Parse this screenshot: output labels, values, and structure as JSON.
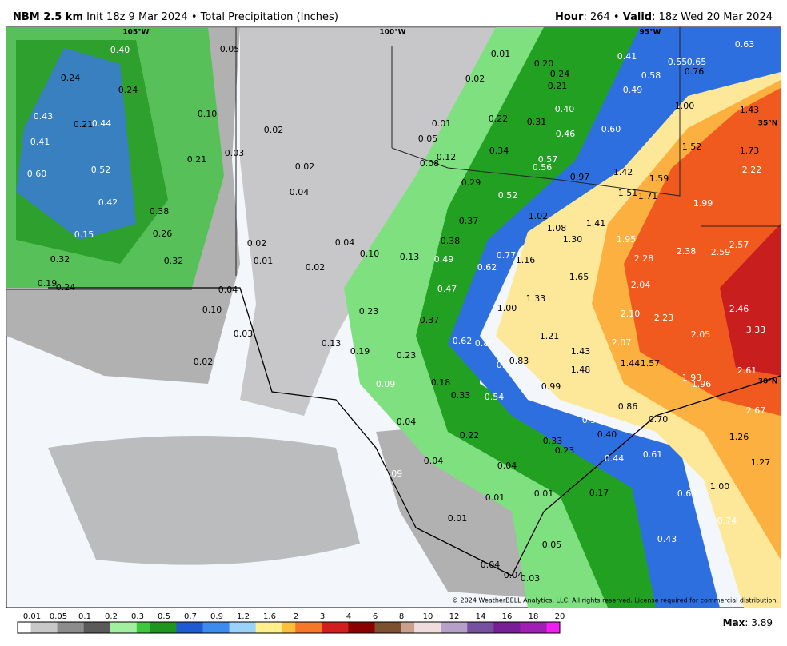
{
  "header": {
    "model": "NBM 2.5 km",
    "init": "Init 18z 9 Mar 2024 • Total Precipitation (Inches)",
    "hour_label": "Hour",
    "hour_value": ": 264 •",
    "valid_label": "Valid",
    "valid_value": ": 18z Wed 20 Mar 2024"
  },
  "map": {
    "graticule": [
      "105°W",
      "100°W",
      "95°W",
      "35°N",
      "30°N"
    ],
    "labels": [
      "0.40",
      "0.05",
      "0.24",
      "0.24",
      "0.10",
      "0.43",
      "0.21",
      "0.44",
      "0.41",
      "0.21",
      "0.03",
      "0.52",
      "0.60",
      "0.42",
      "0.38",
      "0.15",
      "0.26",
      "0.32",
      "0.32",
      "0.19",
      "0.24",
      "0.02",
      "0.02",
      "0.04",
      "0.02",
      "0.01",
      "0.04",
      "0.10",
      "0.02",
      "0.04",
      "0.10",
      "0.03",
      "0.02",
      "0.01",
      "0.02",
      "0.20",
      "0.24",
      "0.21",
      "0.41",
      "0.58",
      "0.49",
      "0.55",
      "0.65",
      "0.63",
      "0.76",
      "0.40",
      "0.22",
      "0.31",
      "0.46",
      "0.60",
      "1.00",
      "1.43",
      "0.01",
      "0.05",
      "0.34",
      "0.12",
      "0.08",
      "0.57",
      "0.56",
      "0.97",
      "1.42",
      "1.59",
      "1.52",
      "1.73",
      "2.22",
      "0.29",
      "0.52",
      "1.51",
      "1.71",
      "1.99",
      "1.02",
      "0.37",
      "1.41",
      "1.08",
      "1.30",
      "1.95",
      "0.38",
      "0.13",
      "0.49",
      "0.77",
      "1.16",
      "2.28",
      "2.38",
      "2.57",
      "2.59",
      "0.62",
      "1.65",
      "2.04",
      "0.47",
      "1.33",
      "1.00",
      "2.10",
      "2.23",
      "2.46",
      "0.23",
      "0.37",
      "3.33",
      "1.21",
      "2.07",
      "2.05",
      "0.13",
      "0.19",
      "0.23",
      "0.62",
      "0.80",
      "0.71",
      "0.83",
      "1.43",
      "1.44",
      "1.57",
      "1.48",
      "1.93",
      "1.96",
      "2.61",
      "0.09",
      "0.18",
      "0.99",
      "0.33",
      "0.54",
      "0.86",
      "0.70",
      "0.52",
      "2.67",
      "0.04",
      "0.22",
      "0.40",
      "1.26",
      "0.33",
      "0.23",
      "0.44",
      "0.61",
      "1.27",
      "0.04",
      "0.04",
      "0.09",
      "1.00",
      "0.17",
      "0.01",
      "0.01",
      "0.68",
      "0.74",
      "0.01",
      "0.43",
      "0.05",
      "0.04",
      "0.04",
      "0.03"
    ],
    "copyright": "© 2024 WeatherBELL Analytics, LLC. All rights reserved. License required for commercial distribution."
  },
  "legend": {
    "ticks": [
      "0.01",
      "0.05",
      "0.1",
      "0.2",
      "0.3",
      "0.5",
      "0.7",
      "0.9",
      "1.2",
      "1.6",
      "2",
      "3",
      "4",
      "6",
      "8",
      "10",
      "12",
      "14",
      "16",
      "18",
      "20"
    ],
    "max_label": "Max",
    "max_value": ": 3.89"
  }
}
